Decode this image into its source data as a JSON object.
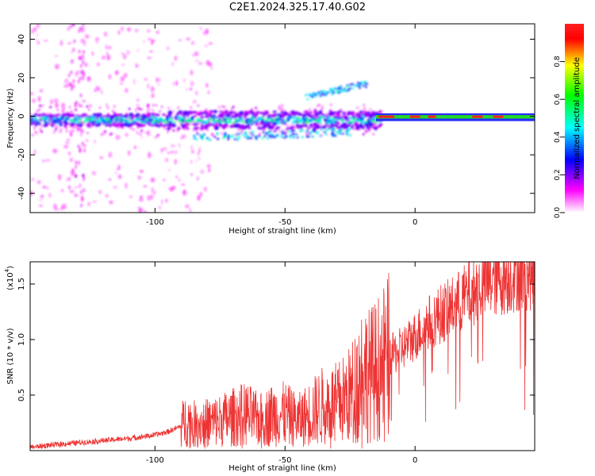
{
  "title": "C2E1.2024.325.17.40.G02",
  "chart_data": [
    {
      "type": "heatmap",
      "xlabel": "Height of straight line (km)",
      "ylabel": "Frequency (Hz)",
      "xlim": [
        -148,
        46
      ],
      "ylim": [
        -50,
        48
      ],
      "x_ticks": [
        -100,
        -50,
        0
      ],
      "y_ticks": [
        -40,
        -20,
        0,
        20,
        40
      ],
      "colorbar": {
        "label": "Normalized spectral amplitude",
        "range": [
          0,
          1
        ],
        "ticks": [
          "0.0",
          "0.2",
          "0.4",
          "0.6",
          "0.8"
        ],
        "colors": [
          "#ffffff",
          "#ff00ff",
          "#0000ff",
          "#00ffff",
          "#00ff00",
          "#ffff00",
          "#ff0000"
        ]
      },
      "features": [
        {
          "name": "main-band",
          "x_start": -148,
          "x_end": 46,
          "freq_center": -2,
          "peak_amplitude": 1.0
        },
        {
          "name": "upper-branch",
          "x_start": -40,
          "x_end": -18,
          "freq_start": 10,
          "freq_end": 18
        },
        {
          "name": "lower-branch",
          "x_start": -85,
          "x_end": -25,
          "freq_start": -12,
          "freq_end": -8
        }
      ]
    },
    {
      "type": "line",
      "xlabel": "Height of straight line (km)",
      "ylabel": "SNR (10 * v/v)",
      "y_multiplier": "(x10",
      "y_multiplier_exp": "4",
      "xlim": [
        -148,
        46
      ],
      "ylim": [
        0,
        17000
      ],
      "x_ticks": [
        -100,
        -50,
        0
      ],
      "y_ticks": [
        5000,
        10000,
        15000
      ],
      "y_tick_labels": [
        "0.5",
        "1.0",
        "1.5"
      ],
      "color": "#ee3333",
      "series": [
        {
          "x": [
            -148,
            -140,
            -130,
            -120,
            -110,
            -100,
            -95,
            -90,
            -88,
            -85,
            -80,
            -75,
            -70,
            -65,
            -60,
            -55,
            -50,
            -45,
            -40,
            -35,
            -30,
            -25,
            -22,
            -20,
            -18,
            -15,
            -12,
            -10,
            -5,
            0,
            5,
            10,
            15,
            20,
            25,
            30,
            35,
            40,
            46
          ],
          "values": [
            300,
            500,
            700,
            900,
            1100,
            1400,
            1700,
            2200,
            2800,
            2400,
            2500,
            2700,
            3000,
            3300,
            2700,
            3200,
            3300,
            2700,
            3400,
            4100,
            4200,
            5000,
            6200,
            7500,
            6800,
            7200,
            8000,
            8500,
            9200,
            10300,
            11500,
            12300,
            13000,
            14000,
            14800,
            15300,
            15600,
            16000,
            16100
          ]
        }
      ]
    }
  ]
}
